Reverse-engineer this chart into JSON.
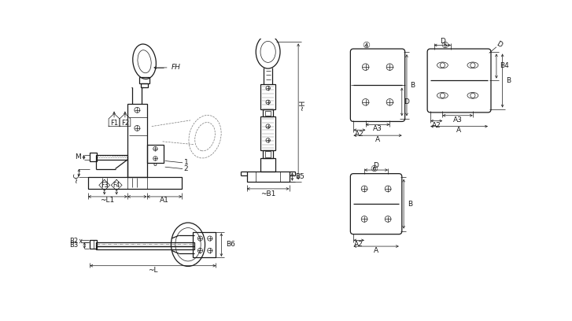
{
  "bg_color": "#ffffff",
  "lc": "#1a1a1a",
  "lw": 0.9,
  "lw_t": 0.5,
  "lw_d": 0.5,
  "lw_dash": 0.5,
  "fs": 6.5,
  "fs2": 8.0,
  "labels": {
    "FH": "FH",
    "F1": "F1",
    "F2": "F2",
    "F3": "F3",
    "F4": "F4",
    "M": "M",
    "C": "~C",
    "L1": "~L1",
    "A1": "A1",
    "H": "~H",
    "B1": "~B1",
    "B5": "B5",
    "B2": "B2",
    "B3": "B3",
    "B6": "B6",
    "L": "~L",
    "num3": "④",
    "num4": "⑤",
    "num5": "⑥",
    "A": "A",
    "A2": "A2",
    "A3": "A3",
    "B": "B",
    "B4": "B4",
    "D": "D",
    "n1": "1",
    "n2": "2"
  }
}
